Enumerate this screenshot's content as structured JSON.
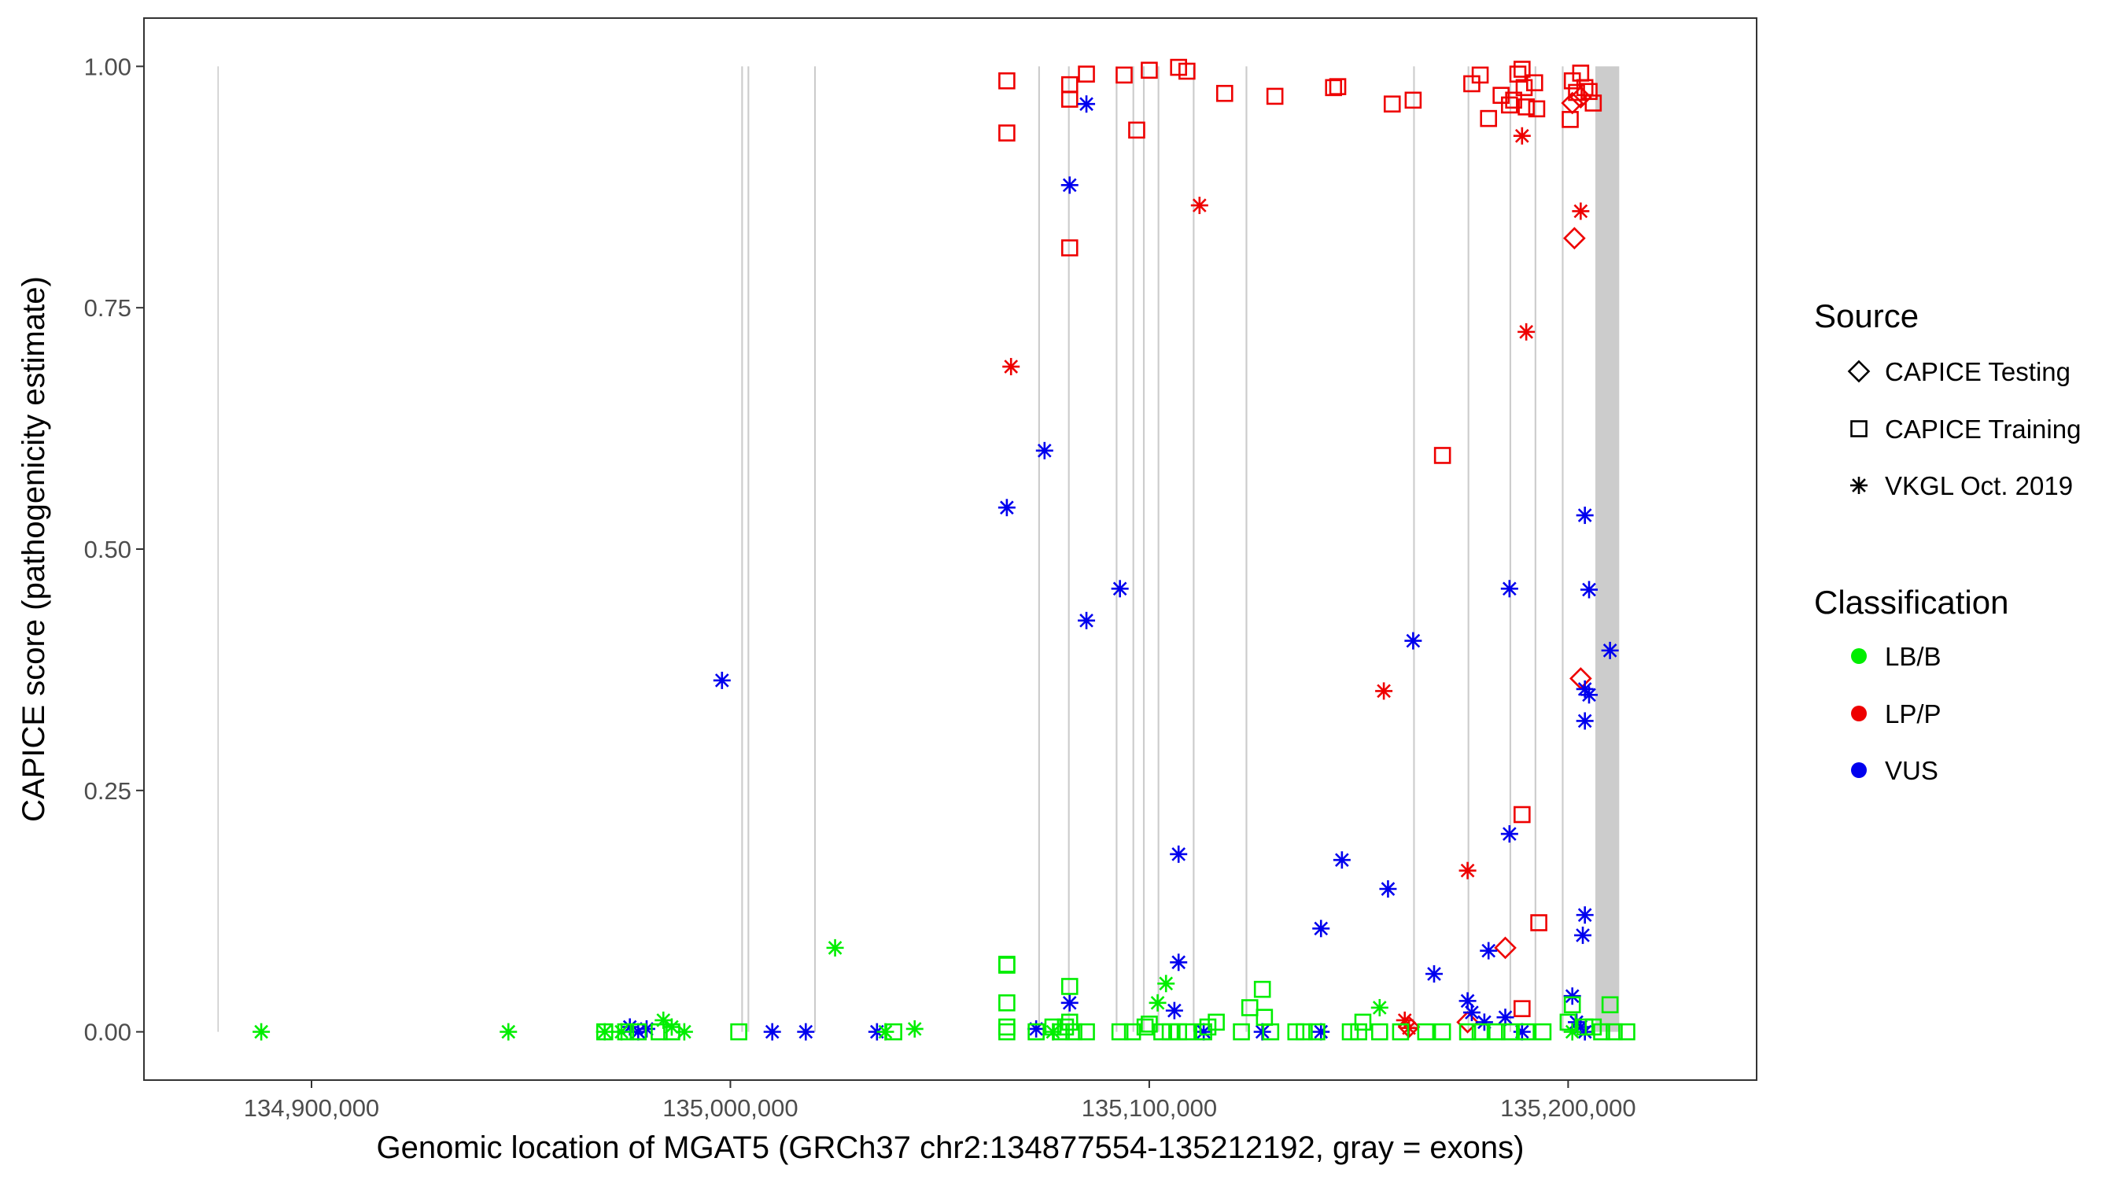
{
  "chart_data": {
    "type": "scatter",
    "xlabel": "Genomic location of MGAT5 (GRCh37 chr2:134877554-135212192, gray = exons)",
    "ylabel": "CAPICE score (pathogenicity estimate)",
    "xlim": [
      134860000,
      135245000
    ],
    "ylim": [
      -0.05,
      1.05
    ],
    "x_ticks": [
      134900000,
      135000000,
      135100000,
      135200000
    ],
    "x_tick_labels": [
      "134,900,000",
      "135,000,000",
      "135,100,000",
      "135,200,000"
    ],
    "y_ticks": [
      0,
      0.25,
      0.5,
      0.75,
      1
    ],
    "y_tick_labels": [
      "0.00",
      "0.25",
      "0.50",
      "0.75",
      "1.00"
    ],
    "grid": false,
    "exons": [
      [
        134877554,
        134877854
      ],
      [
        135002600,
        135003000
      ],
      [
        135004100,
        135004500
      ],
      [
        135020000,
        135020400
      ],
      [
        135073500,
        135073900
      ],
      [
        135080600,
        135081000
      ],
      [
        135092000,
        135092400
      ],
      [
        135096000,
        135096400
      ],
      [
        135098500,
        135098900
      ],
      [
        135102000,
        135102400
      ],
      [
        135110400,
        135110800
      ],
      [
        135123000,
        135123400
      ],
      [
        135163000,
        135163400
      ],
      [
        135176000,
        135176400
      ],
      [
        135186000,
        135186400
      ],
      [
        135192000,
        135192400
      ],
      [
        135198500,
        135198900
      ],
      [
        135206500,
        135212192
      ]
    ],
    "legend": {
      "position": "right",
      "source_title": "Source",
      "source_items": [
        {
          "label": "CAPICE Testing",
          "shape": "diamond"
        },
        {
          "label": "CAPICE Training",
          "shape": "square"
        },
        {
          "label": "VKGL Oct. 2019",
          "shape": "asterisk"
        }
      ],
      "class_title": "Classification",
      "class_items": [
        {
          "label": "LB/B",
          "color": "#00ee00"
        },
        {
          "label": "LP/P",
          "color": "#ee0000"
        },
        {
          "label": "VUS",
          "color": "#0000ee"
        }
      ]
    },
    "series": [
      {
        "source": "CAPICE Training",
        "classification": "LP/P",
        "points": [
          [
            135066000,
            0.985
          ],
          [
            135066000,
            0.931
          ],
          [
            135081000,
            0.981
          ],
          [
            135081000,
            0.966
          ],
          [
            135085000,
            0.992
          ],
          [
            135081000,
            0.812
          ],
          [
            135094000,
            0.991
          ],
          [
            135100000,
            0.996
          ],
          [
            135107000,
            0.999
          ],
          [
            135109000,
            0.995
          ],
          [
            135097000,
            0.934
          ],
          [
            135118000,
            0.972
          ],
          [
            135130000,
            0.969
          ],
          [
            135144000,
            0.978
          ],
          [
            135145000,
            0.979
          ],
          [
            135158000,
            0.961
          ],
          [
            135163000,
            0.965
          ],
          [
            135170000,
            0.597
          ],
          [
            135177000,
            0.982
          ],
          [
            135179000,
            0.991
          ],
          [
            135181000,
            0.946
          ],
          [
            135184000,
            0.97
          ],
          [
            135186000,
            0.96
          ],
          [
            135187000,
            0.965
          ],
          [
            135188000,
            0.992
          ],
          [
            135189000,
            0.997
          ],
          [
            135189500,
            0.978
          ],
          [
            135190000,
            0.958
          ],
          [
            135192000,
            0.983
          ],
          [
            135192500,
            0.956
          ],
          [
            135189000,
            0.225
          ],
          [
            135193000,
            0.113
          ],
          [
            135189000,
            0.024
          ],
          [
            135200500,
            0.945
          ],
          [
            135201000,
            0.985
          ],
          [
            135202000,
            0.973
          ],
          [
            135203000,
            0.993
          ],
          [
            135204000,
            0.978
          ],
          [
            135205000,
            0.974
          ],
          [
            135206000,
            0.962
          ]
        ]
      },
      {
        "source": "CAPICE Testing",
        "classification": "LP/P",
        "points": [
          [
            135201000,
            0.962
          ],
          [
            135201500,
            0.822
          ],
          [
            135203000,
            0.366
          ],
          [
            135185000,
            0.087
          ],
          [
            135162000,
            0.005
          ],
          [
            135176000,
            0.01
          ],
          [
            135203000,
            0.968
          ]
        ]
      },
      {
        "source": "VKGL Oct. 2019",
        "classification": "LP/P",
        "points": [
          [
            135067000,
            0.689
          ],
          [
            135112000,
            0.856
          ],
          [
            135189000,
            0.928
          ],
          [
            135190000,
            0.725
          ],
          [
            135203000,
            0.85
          ],
          [
            135156000,
            0.353
          ],
          [
            135176000,
            0.167
          ],
          [
            135161000,
            0.012
          ],
          [
            135162000,
            0.004
          ]
        ]
      },
      {
        "source": "VKGL Oct. 2019",
        "classification": "VUS",
        "points": [
          [
            134998000,
            0.364
          ],
          [
            135010000,
            0.0
          ],
          [
            135018000,
            0.0
          ],
          [
            135035000,
            0.0
          ],
          [
            135066000,
            0.543
          ],
          [
            135075000,
            0.602
          ],
          [
            135081000,
            0.877
          ],
          [
            135085000,
            0.961
          ],
          [
            135085000,
            0.426
          ],
          [
            135093000,
            0.459
          ],
          [
            135081000,
            0.03
          ],
          [
            135073000,
            0.003
          ],
          [
            135107000,
            0.184
          ],
          [
            135107000,
            0.072
          ],
          [
            135106000,
            0.022
          ],
          [
            135113000,
            0.0
          ],
          [
            135127000,
            0.0
          ],
          [
            135141000,
            0.107
          ],
          [
            135146000,
            0.178
          ],
          [
            135157000,
            0.148
          ],
          [
            135163000,
            0.405
          ],
          [
            135168000,
            0.06
          ],
          [
            135176000,
            0.032
          ],
          [
            135177000,
            0.02
          ],
          [
            135181000,
            0.084
          ],
          [
            135180000,
            0.01
          ],
          [
            135186000,
            0.459
          ],
          [
            135186000,
            0.205
          ],
          [
            135185000,
            0.015
          ],
          [
            135189000,
            0.0
          ],
          [
            135204000,
            0.535
          ],
          [
            135205000,
            0.458
          ],
          [
            135204000,
            0.355
          ],
          [
            135205000,
            0.349
          ],
          [
            135204000,
            0.322
          ],
          [
            135204000,
            0.121
          ],
          [
            135203500,
            0.1
          ],
          [
            135201000,
            0.037
          ],
          [
            135210000,
            0.395
          ],
          [
            135202000,
            0.01
          ],
          [
            135203000,
            0.005
          ],
          [
            135204000,
            0.0
          ],
          [
            134976000,
            0.005
          ],
          [
            134978000,
            0.0
          ],
          [
            134980000,
            0.003
          ],
          [
            135141000,
            0.0
          ]
        ]
      },
      {
        "source": "VKGL Oct. 2019",
        "classification": "LB/B",
        "points": [
          [
            134888000,
            0.0
          ],
          [
            134947000,
            0.0
          ],
          [
            134970000,
            0.0
          ],
          [
            134984000,
            0.012
          ],
          [
            134986000,
            0.005
          ],
          [
            134989000,
            0.0
          ],
          [
            135025000,
            0.087
          ],
          [
            135037000,
            0.0
          ],
          [
            135044000,
            0.003
          ],
          [
            135102000,
            0.03
          ],
          [
            135104000,
            0.05
          ],
          [
            135155000,
            0.025
          ],
          [
            134974000,
            0.0
          ],
          [
            135077000,
            0.0
          ],
          [
            135201000,
            0.0
          ]
        ]
      },
      {
        "source": "CAPICE Training",
        "classification": "LB/B",
        "points": [
          [
            134970000,
            0.0
          ],
          [
            134975000,
            0.0
          ],
          [
            134978000,
            0.0
          ],
          [
            134983000,
            0.0
          ],
          [
            134986000,
            0.0
          ],
          [
            135002000,
            0.0
          ],
          [
            135039000,
            0.0
          ],
          [
            135066000,
            0.07
          ],
          [
            135066000,
            0.069
          ],
          [
            135066000,
            0.03
          ],
          [
            135066000,
            0.005
          ],
          [
            135066000,
            0.0
          ],
          [
            135073000,
            0.0
          ],
          [
            135077000,
            0.005
          ],
          [
            135079000,
            0.0
          ],
          [
            135080000,
            0.005
          ],
          [
            135081000,
            0.047
          ],
          [
            135081000,
            0.01
          ],
          [
            135082000,
            0.0
          ],
          [
            135085000,
            0.0
          ],
          [
            135093000,
            0.0
          ],
          [
            135096000,
            0.0
          ],
          [
            135099000,
            0.005
          ],
          [
            135100000,
            0.008
          ],
          [
            135103000,
            0.0
          ],
          [
            135105000,
            0.0
          ],
          [
            135107000,
            0.0
          ],
          [
            135109000,
            0.0
          ],
          [
            135113000,
            0.0
          ],
          [
            135114000,
            0.005
          ],
          [
            135116000,
            0.01
          ],
          [
            135122000,
            0.0
          ],
          [
            135124000,
            0.025
          ],
          [
            135127000,
            0.044
          ],
          [
            135127500,
            0.015
          ],
          [
            135129000,
            0.0
          ],
          [
            135135000,
            0.0
          ],
          [
            135137000,
            0.0
          ],
          [
            135140000,
            0.0
          ],
          [
            135148000,
            0.0
          ],
          [
            135150000,
            0.0
          ],
          [
            135151000,
            0.01
          ],
          [
            135155000,
            0.0
          ],
          [
            135160000,
            0.0
          ],
          [
            135166000,
            0.0
          ],
          [
            135170000,
            0.0
          ],
          [
            135176000,
            0.0
          ],
          [
            135179000,
            0.0
          ],
          [
            135183000,
            0.0
          ],
          [
            135186000,
            0.0
          ],
          [
            135190000,
            0.0
          ],
          [
            135194000,
            0.0
          ],
          [
            135200000,
            0.01
          ],
          [
            135201000,
            0.028
          ],
          [
            135204000,
            0.005
          ],
          [
            135206000,
            0.005
          ],
          [
            135208000,
            0.0
          ],
          [
            135210000,
            0.028
          ],
          [
            135211000,
            0.0
          ],
          [
            135214000,
            0.0
          ]
        ]
      }
    ]
  }
}
